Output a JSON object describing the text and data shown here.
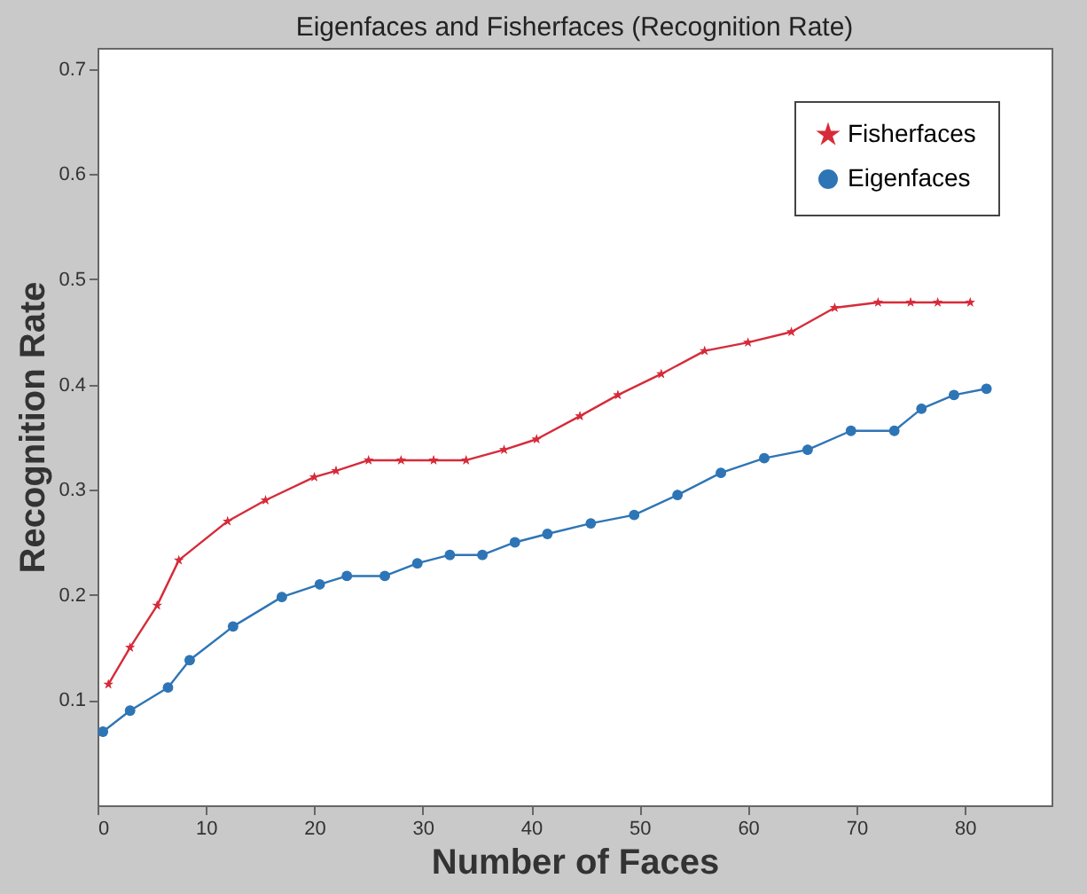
{
  "chart_data": {
    "type": "line",
    "title": "Eigenfaces and Fisherfaces (Recognition Rate)",
    "xlabel": "Number of Faces",
    "ylabel": "Recognition Rate",
    "xlim": [
      0,
      88
    ],
    "xticks": [
      0,
      10,
      20,
      30,
      40,
      50,
      60,
      70,
      80
    ],
    "ylim": [
      0,
      0.72
    ],
    "yticks": [
      0.1,
      0.2,
      0.3,
      0.4,
      0.5,
      0.6,
      0.7
    ],
    "grid": false,
    "legend": "top right",
    "series": [
      {
        "name": "Fisherfaces",
        "color": "#d62b3a",
        "marker": "star",
        "x": [
          1,
          3,
          5.5,
          7.5,
          12,
          15.5,
          20,
          22,
          25,
          28,
          31,
          34,
          37.5,
          40.5,
          44.5,
          48,
          52,
          56,
          60,
          64,
          68,
          72,
          75,
          77.5,
          80.5
        ],
        "values": [
          0.115,
          0.15,
          0.19,
          0.233,
          0.27,
          0.29,
          0.312,
          0.318,
          0.328,
          0.328,
          0.328,
          0.328,
          0.338,
          0.348,
          0.37,
          0.39,
          0.41,
          0.432,
          0.44,
          0.45,
          0.473,
          0.478,
          0.478,
          0.478,
          0.478
        ]
      },
      {
        "name": "Eigenfaces",
        "color": "#2e75b6",
        "marker": "circle",
        "x": [
          0.5,
          3,
          6.5,
          8.5,
          12.5,
          17,
          20.5,
          23,
          26.5,
          29.5,
          32.5,
          35.5,
          38.5,
          41.5,
          45.5,
          49.5,
          53.5,
          57.5,
          61.5,
          65.5,
          69.5,
          73.5,
          76,
          79,
          82
        ],
        "values": [
          0.07,
          0.09,
          0.112,
          0.138,
          0.17,
          0.198,
          0.21,
          0.218,
          0.218,
          0.23,
          0.238,
          0.238,
          0.25,
          0.258,
          0.268,
          0.276,
          0.295,
          0.316,
          0.33,
          0.338,
          0.356,
          0.356,
          0.377,
          0.39,
          0.396
        ]
      }
    ]
  }
}
